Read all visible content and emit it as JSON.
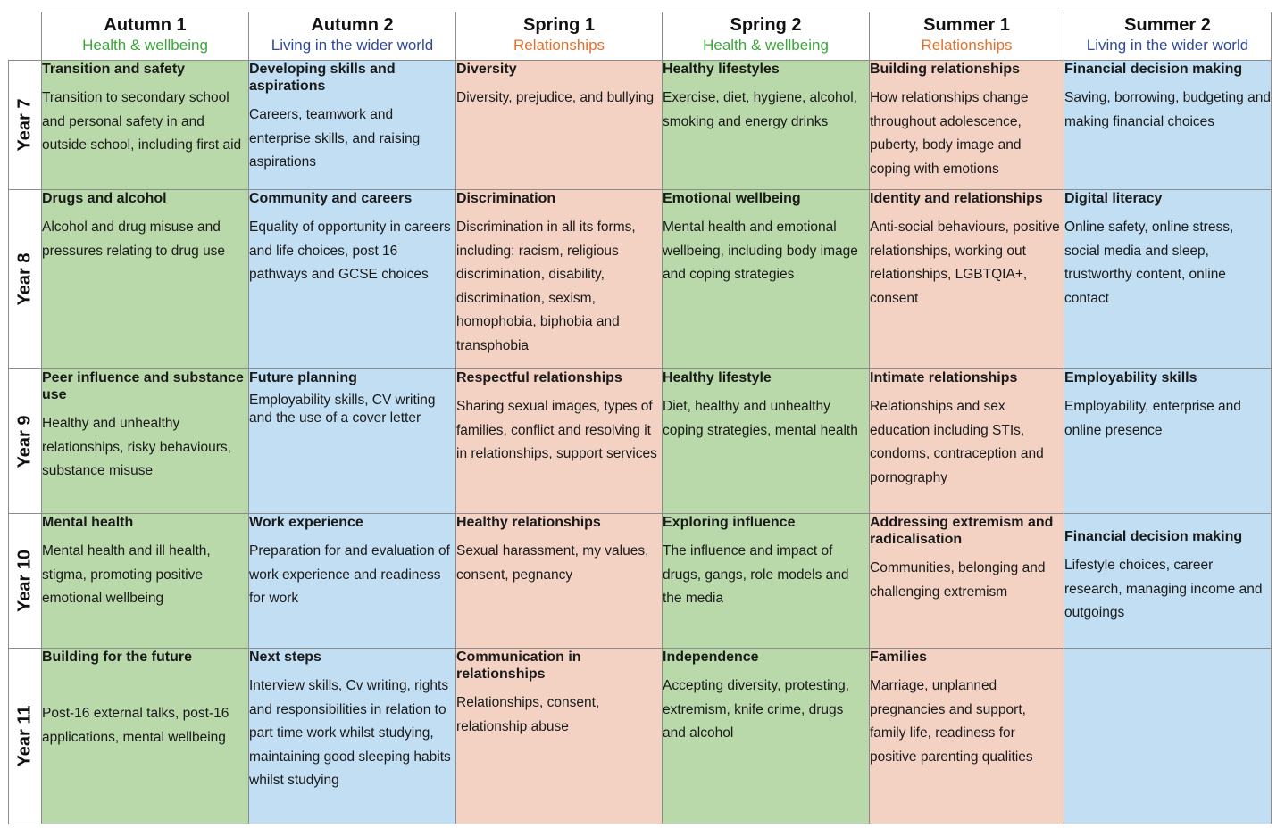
{
  "colors": {
    "green_fill": "#b9d9aa",
    "blue_fill": "#c1def3",
    "pink_fill": "#f3d2c4",
    "theme_green": "#3aa63a",
    "theme_blue": "#2f4a9c",
    "theme_orange": "#e2702c"
  },
  "terms": [
    {
      "name": "Autumn 1",
      "theme": "Health & wellbeing"
    },
    {
      "name": "Autumn 2",
      "theme": "Living in the wider world"
    },
    {
      "name": "Spring 1",
      "theme": "Relationships"
    },
    {
      "name": "Spring 2",
      "theme": "Health & wellbeing"
    },
    {
      "name": "Summer 1",
      "theme": "Relationships"
    },
    {
      "name": "Summer 2",
      "theme": "Living in the wider world"
    }
  ],
  "years": [
    {
      "label": "Year 7",
      "cells": [
        {
          "title": "Transition and safety",
          "desc": "Transition to secondary school and personal safety in and outside school, including first aid"
        },
        {
          "title": "Developing skills and aspirations",
          "desc": "Careers, teamwork and enterprise skills, and raising aspirations"
        },
        {
          "title": "Diversity",
          "desc": "Diversity, prejudice, and bullying"
        },
        {
          "title": "Healthy lifestyles",
          "desc": "Exercise, diet, hygiene, alcohol, smoking and energy drinks"
        },
        {
          "title": "Building relationships",
          "desc": "How relationships change throughout adolescence, puberty, body image and coping with emotions"
        },
        {
          "title": "Financial decision making",
          "desc": "Saving, borrowing, budgeting and making financial choices"
        }
      ]
    },
    {
      "label": "Year 8",
      "cells": [
        {
          "title": "Drugs and alcohol",
          "desc": "Alcohol and drug misuse and pressures relating to drug use"
        },
        {
          "title": "Community and careers",
          "desc": "Equality of opportunity in careers and life choices, post 16 pathways and GCSE choices"
        },
        {
          "title": "Discrimination",
          "desc": "Discrimination in all its forms, including: racism, religious discrimination, disability, discrimination, sexism, homophobia, biphobia and transphobia"
        },
        {
          "title": "Emotional wellbeing",
          "desc": "Mental health and emotional wellbeing, including body image and coping strategies"
        },
        {
          "title": "Identity and relationships",
          "desc": "Anti-social behaviours, positive relationships, working out relationships, LGBTQIA+, consent"
        },
        {
          "title": "Digital literacy",
          "desc": "Online safety, online stress, social media and sleep, trustworthy content, online contact"
        }
      ]
    },
    {
      "label": "Year 9",
      "cells": [
        {
          "title": "Peer influence and substance use",
          "desc": "Healthy and unhealthy relationships, risky behaviours, substance misuse"
        },
        {
          "title": "Future planning",
          "desc": "Employability skills, CV writing and the use of a cover letter"
        },
        {
          "title": "Respectful relationships",
          "desc": "Sharing sexual images, types of families, conflict and resolving it in relationships, support services"
        },
        {
          "title": "Healthy lifestyle",
          "desc": "Diet, healthy and unhealthy coping strategies, mental health"
        },
        {
          "title": "Intimate relationships",
          "desc": "Relationships and sex education including STIs, condoms, contraception and pornography"
        },
        {
          "title": "Employability skills",
          "desc": "Employability, enterprise and online presence"
        }
      ]
    },
    {
      "label": "Year 10",
      "cells": [
        {
          "title": "Mental health",
          "desc": "Mental health and ill health, stigma, promoting positive emotional wellbeing"
        },
        {
          "title": "Work experience",
          "desc": "Preparation for and evaluation of work experience and readiness for work"
        },
        {
          "title": "Healthy relationships",
          "desc": "Sexual harassment, my values, consent, pegnancy"
        },
        {
          "title": "Exploring influence",
          "desc": "The influence and impact of drugs, gangs, role models and the media"
        },
        {
          "title": "Addressing extremism and radicalisation",
          "desc": "Communities, belonging and challenging extremism"
        },
        {
          "title": "Financial decision making",
          "desc": "Lifestyle choices, career research, managing income and outgoings"
        }
      ]
    },
    {
      "label": "Year 11",
      "cells": [
        {
          "title": "Building for the future",
          "desc": "Post-16 external talks, post-16 applications, mental wellbeing"
        },
        {
          "title": "Next steps",
          "desc": "Interview skills, Cv writing, rights and responsibilities in relation to part time work whilst studying, maintaining good sleeping habits whilst studying"
        },
        {
          "title": "Communication in relationships",
          "desc": "Relationships, consent, relationship abuse"
        },
        {
          "title": "Independence",
          "desc": "Accepting diversity, protesting, extremism, knife crime, drugs and alcohol"
        },
        {
          "title": "Families",
          "desc": "Marriage, unplanned pregnancies and support, family life, readiness for positive parenting qualities"
        },
        {
          "title": "",
          "desc": ""
        }
      ]
    }
  ]
}
